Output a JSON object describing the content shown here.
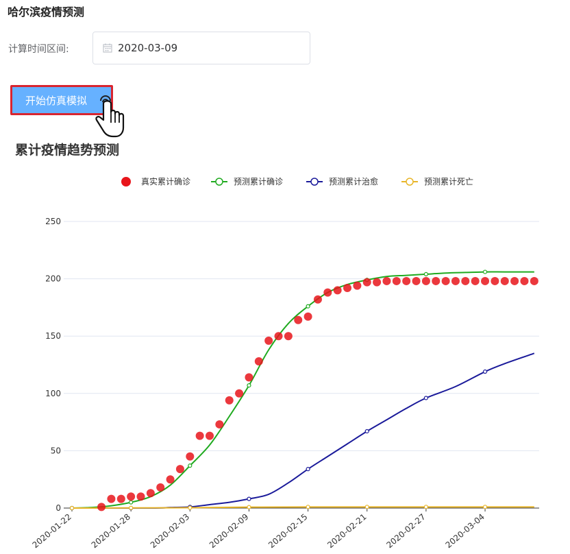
{
  "page": {
    "title": "哈尔滨疫情预测"
  },
  "form": {
    "label": "计算时间区间:",
    "date_value": "2020-03-09",
    "submit_label": "开始仿真模拟"
  },
  "icons": {
    "calendar": "calendar-icon",
    "cursor": "hand-pointer-icon"
  },
  "chart_data": {
    "type": "line",
    "title": "累计疫情趋势预测",
    "x_tick_labels": [
      "2020-01-22",
      "2020-01-28",
      "2020-02-03",
      "2020-02-09",
      "2020-02-15",
      "2020-02-21",
      "2020-02-27",
      "2020-03-04"
    ],
    "x_range": [
      "2020-01-22",
      "2020-03-09"
    ],
    "ylim": [
      0,
      250
    ],
    "y_ticks": [
      0,
      50,
      100,
      150,
      200,
      250
    ],
    "grid": true,
    "legend_position": "top-center",
    "series": [
      {
        "name": "真实累计确诊",
        "kind": "scatter",
        "color": "#e8151b",
        "points": [
          [
            "2020-01-25",
            1
          ],
          [
            "2020-01-26",
            8
          ],
          [
            "2020-01-27",
            8
          ],
          [
            "2020-01-28",
            10
          ],
          [
            "2020-01-29",
            10
          ],
          [
            "2020-01-30",
            13
          ],
          [
            "2020-01-31",
            18
          ],
          [
            "2020-02-01",
            25
          ],
          [
            "2020-02-02",
            34
          ],
          [
            "2020-02-03",
            45
          ],
          [
            "2020-02-04",
            63
          ],
          [
            "2020-02-05",
            63
          ],
          [
            "2020-02-06",
            73
          ],
          [
            "2020-02-07",
            94
          ],
          [
            "2020-02-08",
            100
          ],
          [
            "2020-02-09",
            114
          ],
          [
            "2020-02-10",
            128
          ],
          [
            "2020-02-11",
            146
          ],
          [
            "2020-02-12",
            150
          ],
          [
            "2020-02-13",
            150
          ],
          [
            "2020-02-14",
            164
          ],
          [
            "2020-02-15",
            167
          ],
          [
            "2020-02-16",
            182
          ],
          [
            "2020-02-17",
            188
          ],
          [
            "2020-02-18",
            190
          ],
          [
            "2020-02-19",
            192
          ],
          [
            "2020-02-20",
            194
          ],
          [
            "2020-02-21",
            197
          ],
          [
            "2020-02-22",
            197
          ],
          [
            "2020-02-23",
            198
          ],
          [
            "2020-02-24",
            198
          ],
          [
            "2020-02-25",
            198
          ],
          [
            "2020-02-26",
            198
          ],
          [
            "2020-02-27",
            198
          ],
          [
            "2020-02-28",
            198
          ],
          [
            "2020-02-29",
            198
          ],
          [
            "2020-03-01",
            198
          ],
          [
            "2020-03-02",
            198
          ],
          [
            "2020-03-03",
            198
          ],
          [
            "2020-03-04",
            198
          ],
          [
            "2020-03-05",
            198
          ],
          [
            "2020-03-06",
            198
          ],
          [
            "2020-03-07",
            198
          ],
          [
            "2020-03-08",
            198
          ],
          [
            "2020-03-09",
            198
          ]
        ]
      },
      {
        "name": "预测累计确诊",
        "kind": "line",
        "color": "#1faa1f",
        "points": [
          [
            "2020-01-22",
            0
          ],
          [
            "2020-01-24",
            0.5
          ],
          [
            "2020-01-26",
            2
          ],
          [
            "2020-01-28",
            5
          ],
          [
            "2020-01-30",
            10
          ],
          [
            "2020-02-01",
            20
          ],
          [
            "2020-02-03",
            37
          ],
          [
            "2020-02-05",
            55
          ],
          [
            "2020-02-07",
            80
          ],
          [
            "2020-02-09",
            107
          ],
          [
            "2020-02-11",
            138
          ],
          [
            "2020-02-13",
            161
          ],
          [
            "2020-02-15",
            176
          ],
          [
            "2020-02-17",
            188
          ],
          [
            "2020-02-19",
            195
          ],
          [
            "2020-02-21",
            199
          ],
          [
            "2020-02-23",
            202
          ],
          [
            "2020-02-25",
            203
          ],
          [
            "2020-02-27",
            204
          ],
          [
            "2020-02-29",
            205
          ],
          [
            "2020-03-02",
            205.5
          ],
          [
            "2020-03-04",
            206
          ],
          [
            "2020-03-06",
            206
          ],
          [
            "2020-03-09",
            206
          ]
        ]
      },
      {
        "name": "预测累计治愈",
        "kind": "line",
        "color": "#1a1a9a",
        "points": [
          [
            "2020-01-22",
            0
          ],
          [
            "2020-01-30",
            0
          ],
          [
            "2020-02-01",
            0.5
          ],
          [
            "2020-02-03",
            1
          ],
          [
            "2020-02-05",
            3
          ],
          [
            "2020-02-07",
            5
          ],
          [
            "2020-02-09",
            8
          ],
          [
            "2020-02-11",
            12
          ],
          [
            "2020-02-13",
            22
          ],
          [
            "2020-02-15",
            34
          ],
          [
            "2020-02-17",
            45
          ],
          [
            "2020-02-19",
            56
          ],
          [
            "2020-02-21",
            67
          ],
          [
            "2020-02-23",
            77
          ],
          [
            "2020-02-25",
            87
          ],
          [
            "2020-02-27",
            96
          ],
          [
            "2020-03-01",
            106
          ],
          [
            "2020-03-04",
            119
          ],
          [
            "2020-03-06",
            126
          ],
          [
            "2020-03-09",
            135
          ]
        ]
      },
      {
        "name": "预测累计死亡",
        "kind": "line",
        "color": "#e8b528",
        "points": [
          [
            "2020-01-22",
            0
          ],
          [
            "2020-02-03",
            0.3
          ],
          [
            "2020-02-09",
            0.8
          ],
          [
            "2020-02-15",
            1
          ],
          [
            "2020-02-21",
            1
          ],
          [
            "2020-02-27",
            1
          ],
          [
            "2020-03-04",
            1
          ],
          [
            "2020-03-09",
            1
          ]
        ]
      }
    ]
  }
}
